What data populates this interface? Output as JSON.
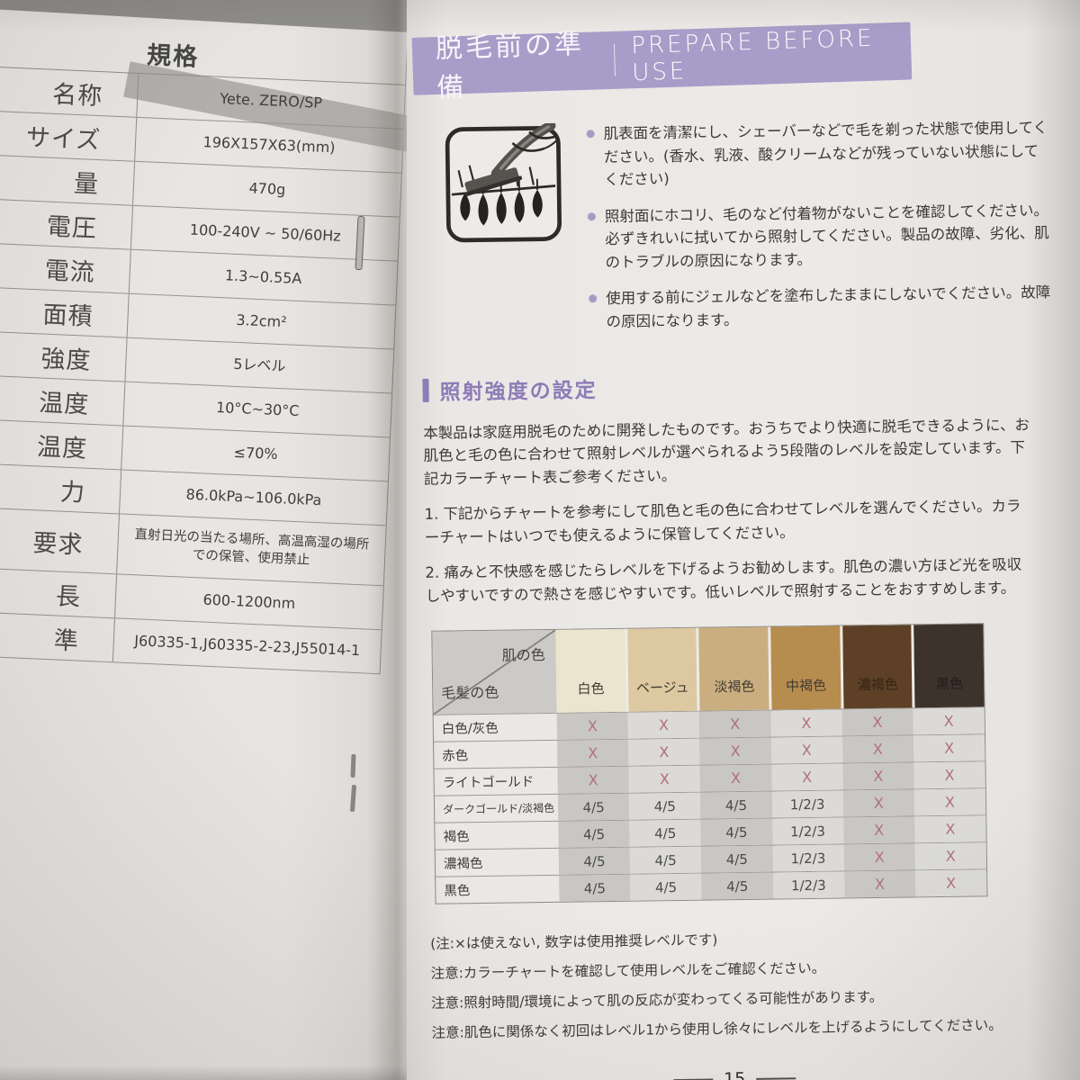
{
  "left": {
    "table_title": "規格",
    "rows": [
      {
        "label": "名称",
        "value": "Yete. ZERO/SP"
      },
      {
        "label": "サイズ",
        "value": "196X157X63(mm)"
      },
      {
        "label": "量",
        "value": "470g"
      },
      {
        "label": "電圧",
        "value": "100-240V ~ 50/60Hz"
      },
      {
        "label": "電流",
        "value": "1.3~0.55A"
      },
      {
        "label": "面積",
        "value": "3.2cm²"
      },
      {
        "label": "強度",
        "value": "5レベル"
      },
      {
        "label": "温度",
        "value": "10°C~30°C"
      },
      {
        "label": "温度",
        "value": "≤70%"
      },
      {
        "label": "力",
        "value": "86.0kPa~106.0kPa"
      },
      {
        "label": "要求",
        "value": "直射日光の当たる場所、高温高湿の場所での保管、使用禁止"
      },
      {
        "label": "長",
        "value": "600-1200nm"
      },
      {
        "label": "準",
        "value": "J60335-1,J60335-2-23,J55014-1"
      }
    ]
  },
  "right": {
    "banner": {
      "jp": "脱毛前の準備",
      "en": "PREPARE BEFORE USE",
      "color": "#a89dc8"
    },
    "icon": "razor-shaving-icon",
    "bullets": [
      "肌表面を清潔にし、シェーバーなどで毛を剃った状態で使用してください。(香水、乳液、酸クリームなどが残っていない状態にしてください)",
      "照射面にホコリ、毛のなど付着物がないことを確認してください。必ずきれいに拭いてから照射してください。製品の故障、劣化、肌のトラブルの原因になります。",
      "使用する前にジェルなどを塗布したままにしないでください。故障の原因になります。"
    ],
    "section": {
      "title": "照射強度の設定",
      "accent_color": "#8d7cb7",
      "intro": "本製品は家庭用脱毛のために開発したものです。おうちでより快適に脱毛できるように、お肌色と毛の色に合わせて照射レベルが選べられるよう5段階のレベルを設定しています。下記カラーチャート表ご参考ください。",
      "steps": [
        "1.  下記からチャートを参考にして肌色と毛の色に合わせてレベルを選んでください。カラーチャートはいつでも使えるように保管してください。",
        "2.  痛みと不快感を感じたらレベルを下げるようお勧めします。肌色の濃い方ほど光を吸収しやすいですので熱さを感じやすいです。低いレベルで照射することをおすすめします。"
      ]
    },
    "chart": {
      "corner_top": "肌の色",
      "corner_bottom": "毛髪の色",
      "x_color": "#b26f7b",
      "skin_columns": [
        {
          "label": "白色",
          "color": "#ebe4cf"
        },
        {
          "label": "ベージュ",
          "color": "#dcc9a2"
        },
        {
          "label": "淡褐色",
          "color": "#cbae80"
        },
        {
          "label": "中褐色",
          "color": "#b78c4f"
        },
        {
          "label": "濃褐色",
          "color": "#5d4026"
        },
        {
          "label": "黒色",
          "color": "#3d332c"
        }
      ],
      "rows": [
        {
          "label": "白色/灰色",
          "cells": [
            "X",
            "X",
            "X",
            "X",
            "X",
            "X"
          ]
        },
        {
          "label": "赤色",
          "cells": [
            "X",
            "X",
            "X",
            "X",
            "X",
            "X"
          ]
        },
        {
          "label": "ライトゴールド",
          "cells": [
            "X",
            "X",
            "X",
            "X",
            "X",
            "X"
          ]
        },
        {
          "label": "ダークゴールド/淡褐色",
          "cells": [
            "4/5",
            "4/5",
            "4/5",
            "1/2/3",
            "X",
            "X"
          ]
        },
        {
          "label": "褐色",
          "cells": [
            "4/5",
            "4/5",
            "4/5",
            "1/2/3",
            "X",
            "X"
          ]
        },
        {
          "label": "濃褐色",
          "cells": [
            "4/5",
            "4/5",
            "4/5",
            "1/2/3",
            "X",
            "X"
          ]
        },
        {
          "label": "黒色",
          "cells": [
            "4/5",
            "4/5",
            "4/5",
            "1/2/3",
            "X",
            "X"
          ]
        }
      ]
    },
    "notes": [
      "(注:×は使えない, 数字は使用推奨レベルです)",
      "注意:カラーチャートを確認して使用レベルをご確認ください。",
      "注意:照射時間/環境によって肌の反応が変わってくる可能性があります。",
      "注意:肌色に関係なく初回はレベル1から使用し徐々にレベルを上げるようにしてください。"
    ],
    "page_number": "15"
  }
}
